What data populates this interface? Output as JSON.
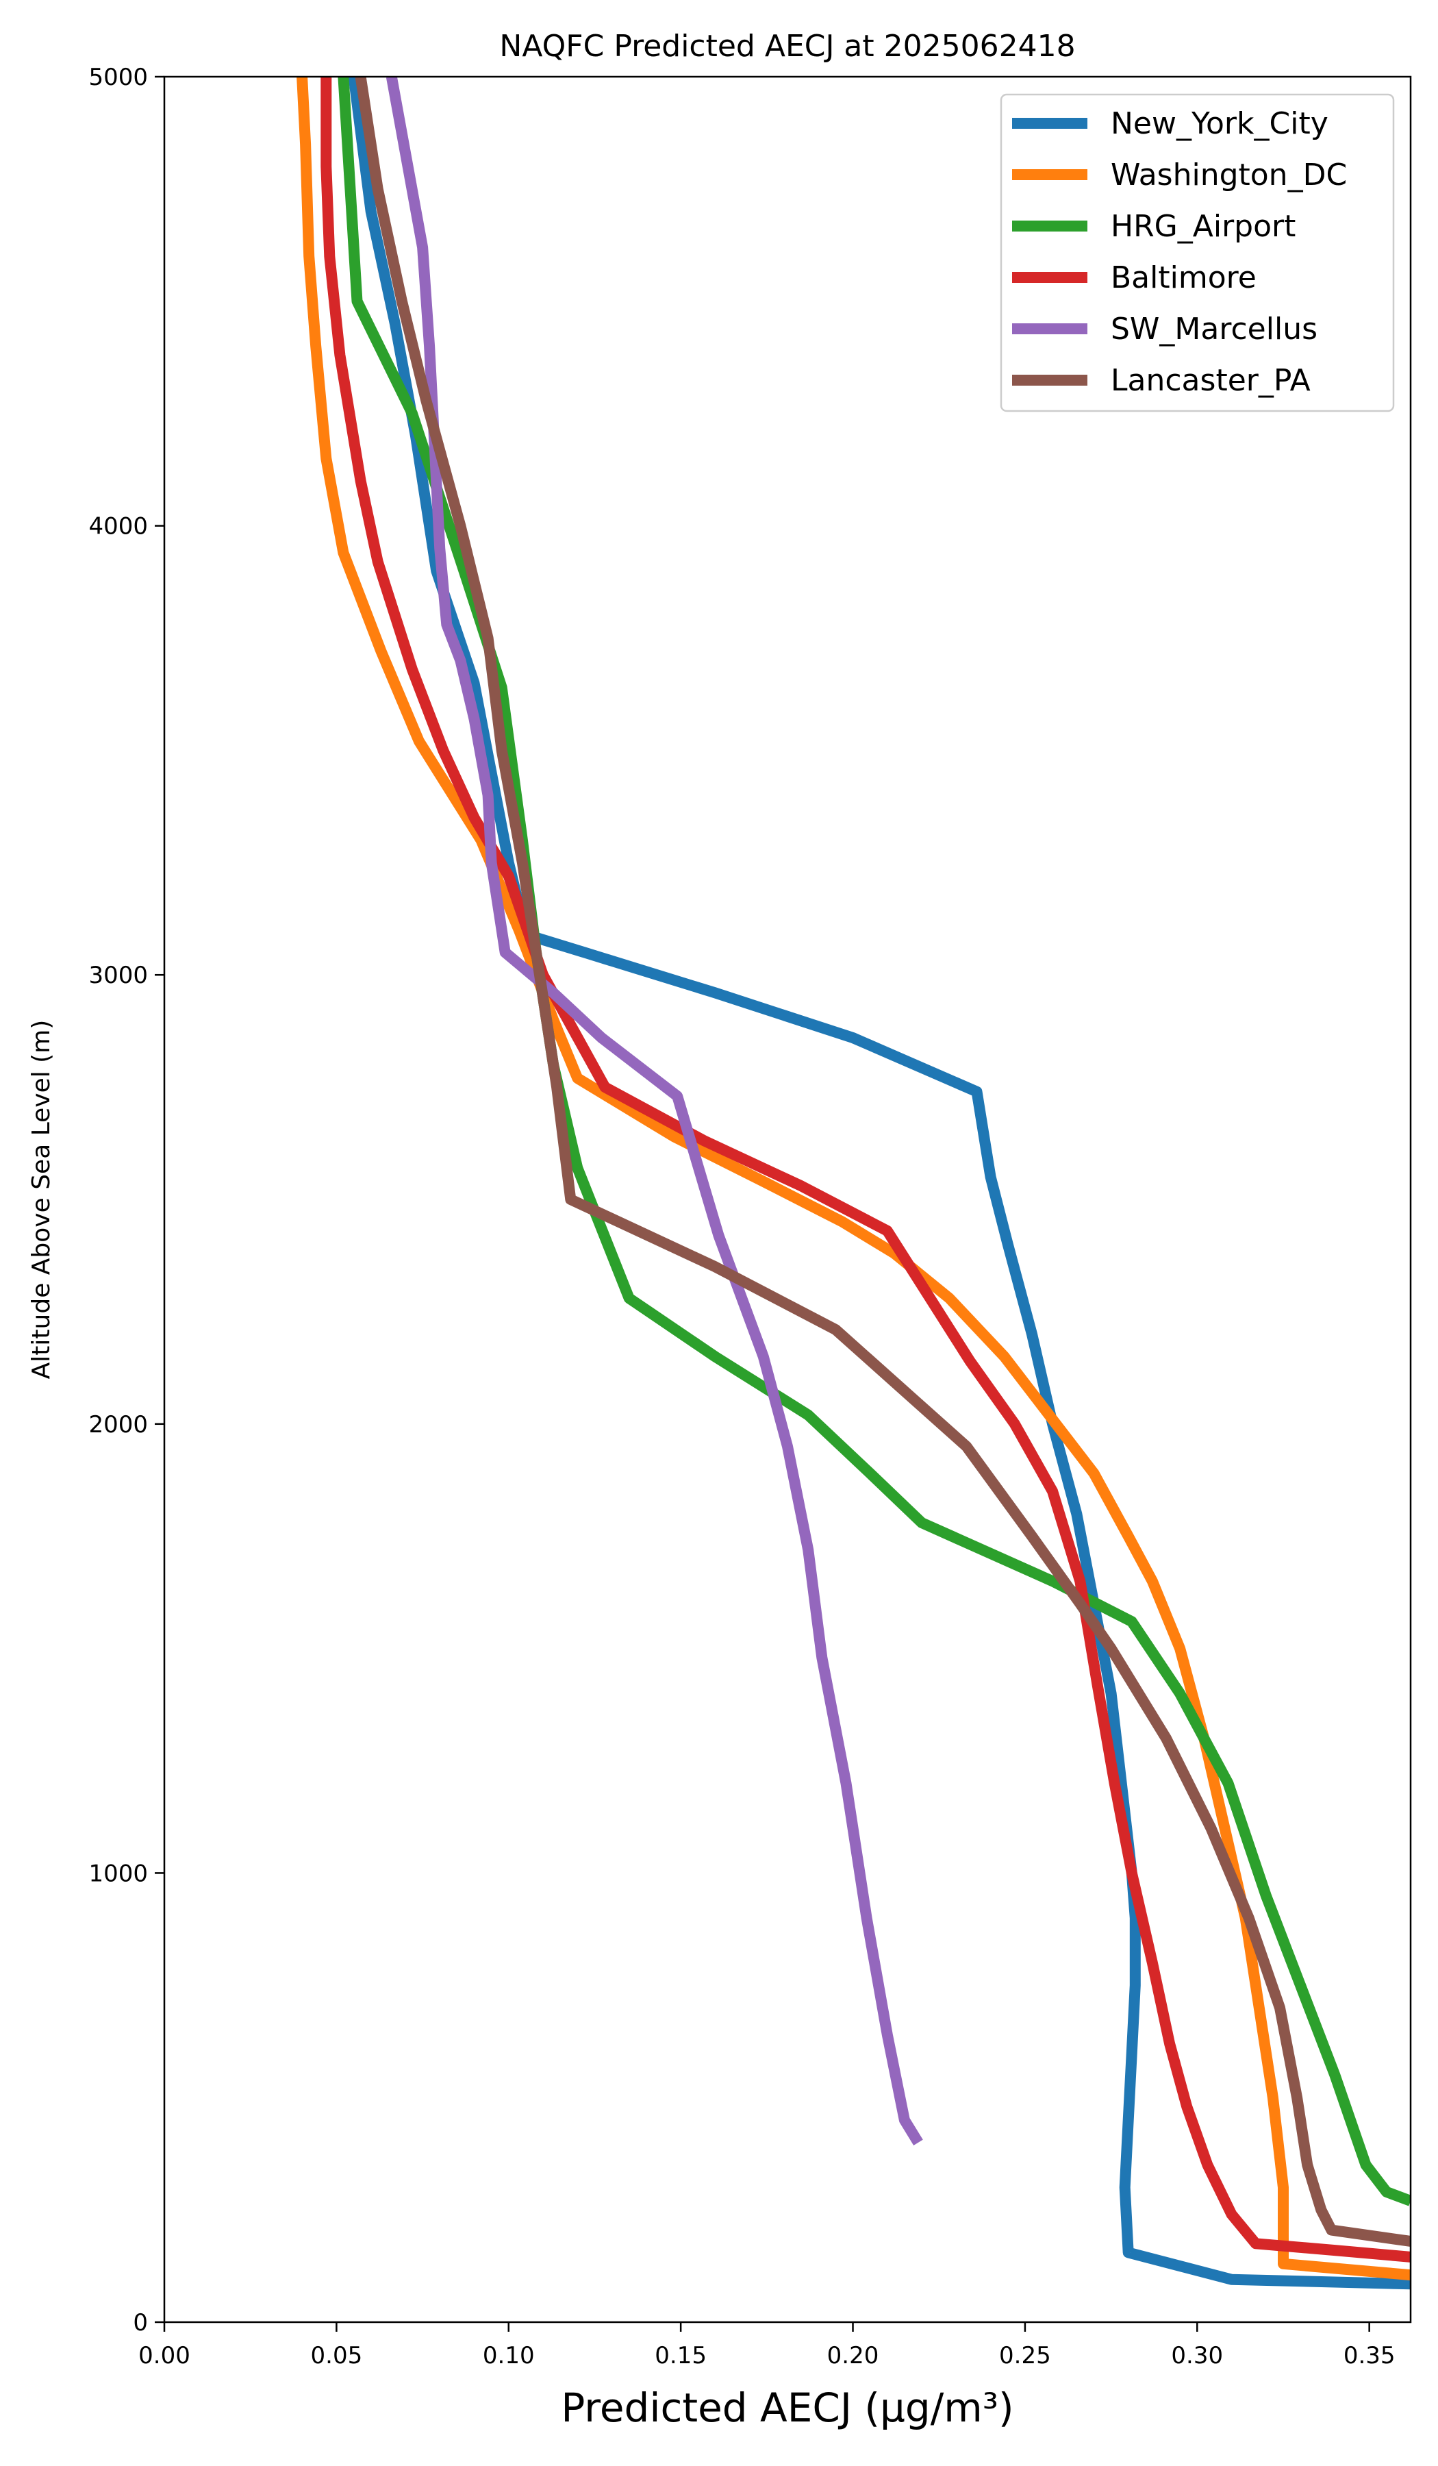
{
  "chart_data": {
    "type": "line",
    "title": "NAQFC Predicted AECJ at 2025062418",
    "xlabel": "Predicted AECJ (μg/m³)",
    "ylabel": "Altitude Above Sea Level (m)",
    "xlim": [
      0,
      0.362
    ],
    "ylim": [
      0,
      5000
    ],
    "xticks": [
      "0.00",
      "0.05",
      "0.10",
      "0.15",
      "0.20",
      "0.25",
      "0.30",
      "0.35"
    ],
    "xtick_values": [
      0,
      0.05,
      0.1,
      0.15,
      0.2,
      0.25,
      0.3,
      0.35
    ],
    "yticks": [
      "0",
      "1000",
      "2000",
      "3000",
      "4000",
      "5000"
    ],
    "ytick_values": [
      0,
      1000,
      2000,
      3000,
      4000,
      5000
    ],
    "grid": false,
    "legend_position": "top-right",
    "series": [
      {
        "name": "New_York_City",
        "color": "#1f77b4",
        "points": [
          [
            0.362,
            85
          ],
          [
            0.31,
            95
          ],
          [
            0.28,
            155
          ],
          [
            0.279,
            300
          ],
          [
            0.28,
            450
          ],
          [
            0.281,
            600
          ],
          [
            0.282,
            750
          ],
          [
            0.282,
            900
          ],
          [
            0.281,
            1000
          ],
          [
            0.278,
            1200
          ],
          [
            0.275,
            1400
          ],
          [
            0.27,
            1600
          ],
          [
            0.265,
            1800
          ],
          [
            0.258,
            2000
          ],
          [
            0.252,
            2200
          ],
          [
            0.245,
            2400
          ],
          [
            0.24,
            2550
          ],
          [
            0.236,
            2740
          ],
          [
            0.2,
            2860
          ],
          [
            0.16,
            2960
          ],
          [
            0.122,
            3050
          ],
          [
            0.105,
            3090
          ],
          [
            0.1,
            3250
          ],
          [
            0.095,
            3450
          ],
          [
            0.09,
            3650
          ],
          [
            0.079,
            3900
          ],
          [
            0.073,
            4200
          ],
          [
            0.067,
            4450
          ],
          [
            0.06,
            4700
          ],
          [
            0.055,
            5000
          ]
        ]
      },
      {
        "name": "Washington_DC",
        "color": "#ff7f0e",
        "points": [
          [
            0.362,
            105
          ],
          [
            0.325,
            130
          ],
          [
            0.325,
            300
          ],
          [
            0.322,
            500
          ],
          [
            0.318,
            700
          ],
          [
            0.314,
            900
          ],
          [
            0.308,
            1100
          ],
          [
            0.302,
            1300
          ],
          [
            0.295,
            1500
          ],
          [
            0.287,
            1650
          ],
          [
            0.28,
            1750
          ],
          [
            0.27,
            1890
          ],
          [
            0.257,
            2020
          ],
          [
            0.244,
            2150
          ],
          [
            0.228,
            2280
          ],
          [
            0.212,
            2380
          ],
          [
            0.197,
            2450
          ],
          [
            0.174,
            2540
          ],
          [
            0.148,
            2640
          ],
          [
            0.12,
            2770
          ],
          [
            0.113,
            2900
          ],
          [
            0.103,
            3100
          ],
          [
            0.092,
            3300
          ],
          [
            0.074,
            3520
          ],
          [
            0.063,
            3720
          ],
          [
            0.052,
            3940
          ],
          [
            0.047,
            4150
          ],
          [
            0.044,
            4400
          ],
          [
            0.042,
            4600
          ],
          [
            0.041,
            4850
          ],
          [
            0.04,
            5000
          ]
        ]
      },
      {
        "name": "HRG_Airport",
        "color": "#2ca02c",
        "points": [
          [
            0.362,
            270
          ],
          [
            0.355,
            290
          ],
          [
            0.349,
            350
          ],
          [
            0.34,
            550
          ],
          [
            0.33,
            750
          ],
          [
            0.32,
            950
          ],
          [
            0.309,
            1200
          ],
          [
            0.295,
            1400
          ],
          [
            0.281,
            1560
          ],
          [
            0.258,
            1650
          ],
          [
            0.22,
            1780
          ],
          [
            0.205,
            1890
          ],
          [
            0.187,
            2020
          ],
          [
            0.16,
            2150
          ],
          [
            0.135,
            2280
          ],
          [
            0.12,
            2570
          ],
          [
            0.113,
            2800
          ],
          [
            0.108,
            3050
          ],
          [
            0.104,
            3300
          ],
          [
            0.098,
            3640
          ],
          [
            0.087,
            3900
          ],
          [
            0.072,
            4250
          ],
          [
            0.056,
            4500
          ],
          [
            0.052,
            5000
          ]
        ]
      },
      {
        "name": "Baltimore",
        "color": "#d62728",
        "points": [
          [
            0.362,
            145
          ],
          [
            0.34,
            160
          ],
          [
            0.317,
            175
          ],
          [
            0.31,
            240
          ],
          [
            0.303,
            350
          ],
          [
            0.297,
            480
          ],
          [
            0.292,
            620
          ],
          [
            0.287,
            800
          ],
          [
            0.281,
            1000
          ],
          [
            0.276,
            1200
          ],
          [
            0.271,
            1420
          ],
          [
            0.266,
            1650
          ],
          [
            0.258,
            1850
          ],
          [
            0.247,
            2000
          ],
          [
            0.234,
            2140
          ],
          [
            0.21,
            2430
          ],
          [
            0.185,
            2530
          ],
          [
            0.157,
            2630
          ],
          [
            0.128,
            2750
          ],
          [
            0.11,
            3000
          ],
          [
            0.1,
            3220
          ],
          [
            0.09,
            3350
          ],
          [
            0.081,
            3500
          ],
          [
            0.072,
            3680
          ],
          [
            0.062,
            3920
          ],
          [
            0.057,
            4100
          ],
          [
            0.051,
            4380
          ],
          [
            0.048,
            4600
          ],
          [
            0.047,
            4800
          ],
          [
            0.047,
            5000
          ]
        ]
      },
      {
        "name": "SW_Marcellus",
        "color": "#9467bd",
        "points": [
          [
            0.219,
            400
          ],
          [
            0.215,
            450
          ],
          [
            0.21,
            640
          ],
          [
            0.204,
            900
          ],
          [
            0.198,
            1200
          ],
          [
            0.191,
            1480
          ],
          [
            0.187,
            1720
          ],
          [
            0.181,
            1950
          ],
          [
            0.174,
            2150
          ],
          [
            0.161,
            2420
          ],
          [
            0.149,
            2730
          ],
          [
            0.127,
            2860
          ],
          [
            0.113,
            2960
          ],
          [
            0.099,
            3050
          ],
          [
            0.095,
            3250
          ],
          [
            0.094,
            3400
          ],
          [
            0.09,
            3570
          ],
          [
            0.086,
            3700
          ],
          [
            0.082,
            3780
          ],
          [
            0.08,
            3950
          ],
          [
            0.078,
            4250
          ],
          [
            0.077,
            4400
          ],
          [
            0.075,
            4620
          ],
          [
            0.066,
            5000
          ]
        ]
      },
      {
        "name": "Lancaster_PA",
        "color": "#8c564b",
        "points": [
          [
            0.362,
            180
          ],
          [
            0.339,
            205
          ],
          [
            0.336,
            250
          ],
          [
            0.332,
            350
          ],
          [
            0.329,
            500
          ],
          [
            0.324,
            700
          ],
          [
            0.315,
            900
          ],
          [
            0.304,
            1100
          ],
          [
            0.291,
            1300
          ],
          [
            0.275,
            1500
          ],
          [
            0.266,
            1600
          ],
          [
            0.252,
            1750
          ],
          [
            0.233,
            1950
          ],
          [
            0.214,
            2080
          ],
          [
            0.195,
            2210
          ],
          [
            0.16,
            2350
          ],
          [
            0.118,
            2500
          ],
          [
            0.114,
            2750
          ],
          [
            0.109,
            3000
          ],
          [
            0.104,
            3250
          ],
          [
            0.098,
            3500
          ],
          [
            0.094,
            3750
          ],
          [
            0.086,
            4000
          ],
          [
            0.076,
            4280
          ],
          [
            0.069,
            4500
          ],
          [
            0.062,
            4750
          ],
          [
            0.057,
            5000
          ]
        ]
      }
    ]
  }
}
